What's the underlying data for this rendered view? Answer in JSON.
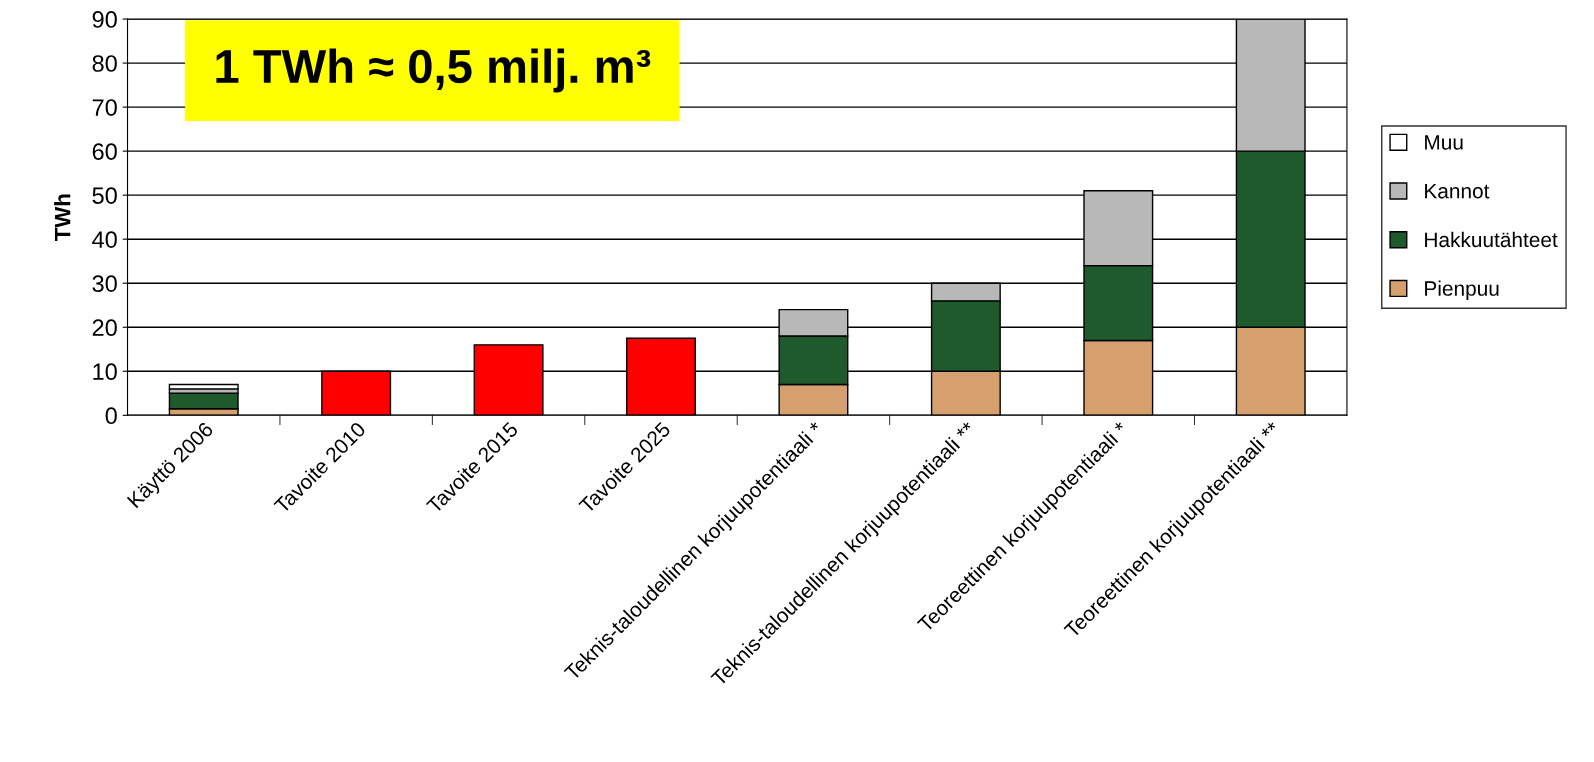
{
  "chart_data": {
    "type": "bar",
    "stacked": true,
    "ylabel": "TWh",
    "categories": [
      "Käyttö 2006",
      "Tavoite 2010",
      "Tavoite 2015",
      "Tavoite 2025",
      "Teknis-taloudellinen korjuupotentiaali *",
      "Teknis-taloudellinen korjuupotentiaali **",
      "Teoreettinen korjuupotentiaali *",
      "Teoreettinen korjuupotentiaali **"
    ],
    "series": [
      {
        "name": "Pienpuu",
        "color": "#d6a06e",
        "values": [
          1.5,
          null,
          null,
          null,
          7,
          10,
          17,
          20
        ]
      },
      {
        "name": "Hakkuutähteet",
        "color": "#1f5a2c",
        "values": [
          3.5,
          null,
          null,
          null,
          11,
          16,
          17,
          40
        ]
      },
      {
        "name": "Kannot",
        "color": "#b8b8b8",
        "values": [
          1,
          null,
          null,
          null,
          6,
          4,
          17,
          30
        ]
      },
      {
        "name": "Muu",
        "color": "#ffffff",
        "values": [
          1,
          null,
          null,
          null,
          null,
          null,
          null,
          null
        ]
      },
      {
        "color": "#ff0000",
        "values": [
          null,
          10,
          16,
          17.5,
          null,
          null,
          null,
          null
        ]
      }
    ],
    "ylim": [
      0,
      90
    ],
    "yticks": [
      0,
      10,
      20,
      30,
      40,
      50,
      60,
      70,
      80,
      90
    ],
    "grid": "y",
    "legend": "right",
    "annotations": [
      "1 TWh ≈ 0,5 milj. m³"
    ]
  }
}
